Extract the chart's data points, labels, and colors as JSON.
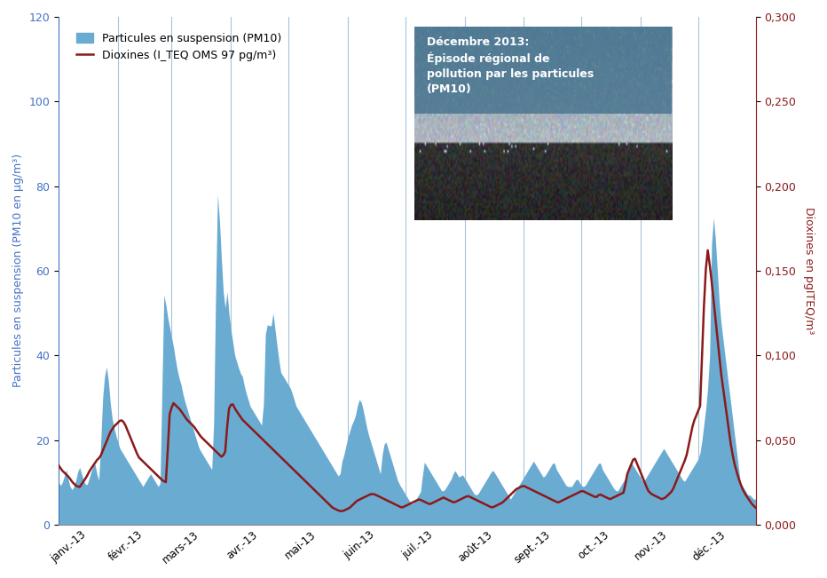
{
  "ylabel_left": "Particules en suspension (PM10 en µg/m³)",
  "ylabel_right": "Dioxines en pgITEQ/m³",
  "ylim_left": [
    0,
    120
  ],
  "ylim_right": [
    0,
    0.3
  ],
  "yticks_left": [
    0,
    20,
    40,
    60,
    80,
    100,
    120
  ],
  "yticks_right": [
    0.0,
    0.05,
    0.1,
    0.15,
    0.2,
    0.25,
    0.3
  ],
  "ytick_labels_right": [
    "0,000",
    "0,050",
    "0,100",
    "0,150",
    "0,200",
    "0,250",
    "0,300"
  ],
  "xticklabels": [
    "janv.-13",
    "févr.-13",
    "mars-13",
    "avr.-13",
    "mai-13",
    "juin-13",
    "juil.-13",
    "août-13",
    "sept.-13",
    "oct.-13",
    "nov.-13",
    "déc.-13"
  ],
  "bar_color": "#6aabd2",
  "bar_alpha": 1.0,
  "line_color": "#8B1A1A",
  "line_width": 1.8,
  "annotation_text": "Décembre 2013:\nÉpisode régional de\npollution par les particules\n(PM10)",
  "annotation_color": "white",
  "legend_label_bar": "Particules en suspension (PM10)",
  "legend_label_line": "Dioxines (I_TEQ OMS 97 pg/m³)",
  "background_color": "white",
  "grid_color": "#a8c4d8",
  "left_axis_color": "#4472C4",
  "right_axis_color": "#8B1A1A",
  "pm10_data": [
    10,
    9,
    11,
    13,
    10,
    8,
    9,
    11,
    14,
    12,
    10,
    9,
    11,
    13,
    15,
    12,
    10,
    28,
    35,
    38,
    30,
    25,
    22,
    20,
    18,
    17,
    16,
    15,
    14,
    13,
    12,
    11,
    10,
    9,
    10,
    11,
    12,
    11,
    10,
    9,
    10,
    55,
    52,
    48,
    45,
    42,
    38,
    35,
    33,
    30,
    28,
    26,
    24,
    22,
    20,
    18,
    17,
    16,
    15,
    14,
    13,
    28,
    80,
    72,
    60,
    50,
    55,
    48,
    44,
    40,
    38,
    36,
    35,
    32,
    30,
    28,
    27,
    26,
    25,
    24,
    23,
    45,
    48,
    46,
    50,
    45,
    40,
    36,
    35,
    34,
    33,
    32,
    30,
    28,
    27,
    26,
    25,
    24,
    23,
    22,
    21,
    20,
    19,
    18,
    17,
    16,
    15,
    14,
    13,
    12,
    11,
    15,
    17,
    20,
    22,
    24,
    25,
    28,
    30,
    28,
    25,
    22,
    20,
    18,
    16,
    14,
    12,
    18,
    20,
    18,
    16,
    14,
    12,
    10,
    9,
    8,
    7,
    6,
    5,
    5,
    6,
    7,
    8,
    15,
    14,
    13,
    12,
    11,
    10,
    9,
    8,
    8,
    9,
    10,
    11,
    13,
    12,
    11,
    12,
    11,
    10,
    9,
    8,
    7,
    7,
    8,
    9,
    10,
    11,
    12,
    13,
    12,
    11,
    10,
    9,
    8,
    7,
    6,
    7,
    8,
    9,
    10,
    11,
    12,
    13,
    14,
    15,
    14,
    13,
    12,
    11,
    12,
    13,
    14,
    15,
    13,
    12,
    11,
    10,
    9,
    9,
    9,
    10,
    11,
    10,
    9,
    9,
    10,
    11,
    12,
    13,
    14,
    15,
    13,
    12,
    11,
    10,
    9,
    8,
    8,
    9,
    10,
    11,
    13,
    15,
    14,
    13,
    12,
    11,
    10,
    11,
    12,
    13,
    14,
    15,
    16,
    17,
    18,
    17,
    16,
    15,
    14,
    13,
    12,
    11,
    10,
    11,
    12,
    13,
    14,
    15,
    16,
    20,
    25,
    30,
    40,
    75,
    70,
    60,
    50,
    45,
    40,
    35,
    30,
    25,
    20,
    15,
    10,
    9,
    8,
    7,
    7,
    6,
    6
  ],
  "dioxin_data": [
    0.035,
    0.032,
    0.03,
    0.028,
    0.025,
    0.023,
    0.022,
    0.025,
    0.028,
    0.032,
    0.035,
    0.038,
    0.04,
    0.045,
    0.05,
    0.055,
    0.058,
    0.06,
    0.062,
    0.06,
    0.055,
    0.05,
    0.045,
    0.04,
    0.038,
    0.036,
    0.034,
    0.032,
    0.03,
    0.028,
    0.026,
    0.025,
    0.065,
    0.072,
    0.07,
    0.068,
    0.065,
    0.062,
    0.06,
    0.058,
    0.055,
    0.052,
    0.05,
    0.048,
    0.046,
    0.044,
    0.042,
    0.04,
    0.042,
    0.068,
    0.072,
    0.068,
    0.065,
    0.062,
    0.06,
    0.058,
    0.056,
    0.054,
    0.052,
    0.05,
    0.048,
    0.046,
    0.044,
    0.042,
    0.04,
    0.038,
    0.036,
    0.034,
    0.032,
    0.03,
    0.028,
    0.026,
    0.024,
    0.022,
    0.02,
    0.018,
    0.016,
    0.014,
    0.012,
    0.01,
    0.009,
    0.008,
    0.008,
    0.009,
    0.01,
    0.012,
    0.014,
    0.015,
    0.016,
    0.017,
    0.018,
    0.018,
    0.017,
    0.016,
    0.015,
    0.014,
    0.013,
    0.012,
    0.011,
    0.01,
    0.011,
    0.012,
    0.013,
    0.014,
    0.015,
    0.014,
    0.013,
    0.012,
    0.013,
    0.014,
    0.015,
    0.016,
    0.015,
    0.014,
    0.013,
    0.014,
    0.015,
    0.016,
    0.017,
    0.016,
    0.015,
    0.014,
    0.013,
    0.012,
    0.011,
    0.01,
    0.011,
    0.012,
    0.013,
    0.015,
    0.017,
    0.019,
    0.021,
    0.022,
    0.023,
    0.022,
    0.021,
    0.02,
    0.019,
    0.018,
    0.017,
    0.016,
    0.015,
    0.014,
    0.013,
    0.014,
    0.015,
    0.016,
    0.017,
    0.018,
    0.019,
    0.02,
    0.019,
    0.018,
    0.017,
    0.016,
    0.018,
    0.017,
    0.016,
    0.015,
    0.016,
    0.017,
    0.018,
    0.019,
    0.03,
    0.035,
    0.04,
    0.035,
    0.03,
    0.025,
    0.02,
    0.018,
    0.017,
    0.016,
    0.015,
    0.016,
    0.018,
    0.02,
    0.025,
    0.03,
    0.035,
    0.04,
    0.05,
    0.06,
    0.065,
    0.07,
    0.125,
    0.165,
    0.15,
    0.13,
    0.11,
    0.09,
    0.075,
    0.06,
    0.045,
    0.035,
    0.028,
    0.022,
    0.018,
    0.015,
    0.012,
    0.01
  ]
}
